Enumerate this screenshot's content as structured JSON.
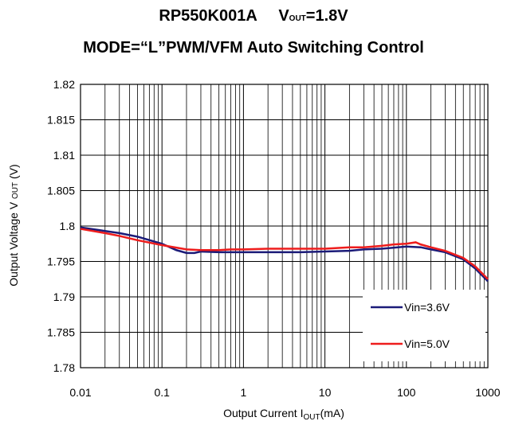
{
  "chart_data": {
    "type": "line",
    "title": [
      "RP550K001A",
      "V",
      "OUT",
      "=1.8V"
    ],
    "subtitle": "MODE=“L”PWM/VFM Auto Switching Control",
    "xlabel": [
      "Output Current I",
      "OUT",
      "(mA)"
    ],
    "ylabel": [
      "Output Voltage V ",
      "OUT",
      " (V)"
    ],
    "xscale": "log",
    "xlim": [
      0.01,
      1000
    ],
    "xticks": [
      0.01,
      0.1,
      1,
      10,
      100,
      1000
    ],
    "xminorticks": [
      0.02,
      0.03,
      0.04,
      0.05,
      0.06,
      0.07,
      0.08,
      0.09,
      0.2,
      0.3,
      0.4,
      0.5,
      0.6,
      0.7,
      0.8,
      0.9,
      2,
      3,
      4,
      5,
      6,
      7,
      8,
      9,
      20,
      30,
      40,
      50,
      60,
      70,
      80,
      90,
      200,
      300,
      400,
      500,
      600,
      700,
      800,
      900
    ],
    "ylim": [
      1.78,
      1.82
    ],
    "yticks": [
      1.78,
      1.785,
      1.79,
      1.795,
      1.8,
      1.805,
      1.81,
      1.815,
      1.82
    ],
    "grid": true,
    "legend": "lower right",
    "series": [
      {
        "name": "Vin=3.6V",
        "color": "#1b1b78",
        "x": [
          0.01,
          0.02,
          0.03,
          0.05,
          0.1,
          0.15,
          0.2,
          0.25,
          0.3,
          0.5,
          0.7,
          1,
          2,
          5,
          10,
          20,
          30,
          50,
          100,
          150,
          200,
          300,
          500,
          700,
          1000
        ],
        "values": [
          1.7998,
          1.7993,
          1.799,
          1.7985,
          1.7975,
          1.7966,
          1.7962,
          1.7962,
          1.7964,
          1.7963,
          1.7963,
          1.7963,
          1.7963,
          1.7963,
          1.7964,
          1.7965,
          1.7967,
          1.7968,
          1.7971,
          1.797,
          1.7967,
          1.7963,
          1.7953,
          1.794,
          1.7922
        ]
      },
      {
        "name": "Vin=5.0V",
        "color": "#ee1c1c",
        "x": [
          0.01,
          0.02,
          0.03,
          0.05,
          0.1,
          0.2,
          0.3,
          0.5,
          0.7,
          1,
          2,
          5,
          10,
          20,
          30,
          50,
          70,
          100,
          130,
          150,
          200,
          300,
          500,
          700,
          1000
        ],
        "values": [
          1.7996,
          1.799,
          1.7986,
          1.798,
          1.7973,
          1.7967,
          1.7966,
          1.7966,
          1.7967,
          1.7967,
          1.7968,
          1.7968,
          1.7968,
          1.797,
          1.797,
          1.7972,
          1.7974,
          1.7975,
          1.7977,
          1.7974,
          1.797,
          1.7965,
          1.7955,
          1.7943,
          1.7925
        ]
      }
    ]
  }
}
